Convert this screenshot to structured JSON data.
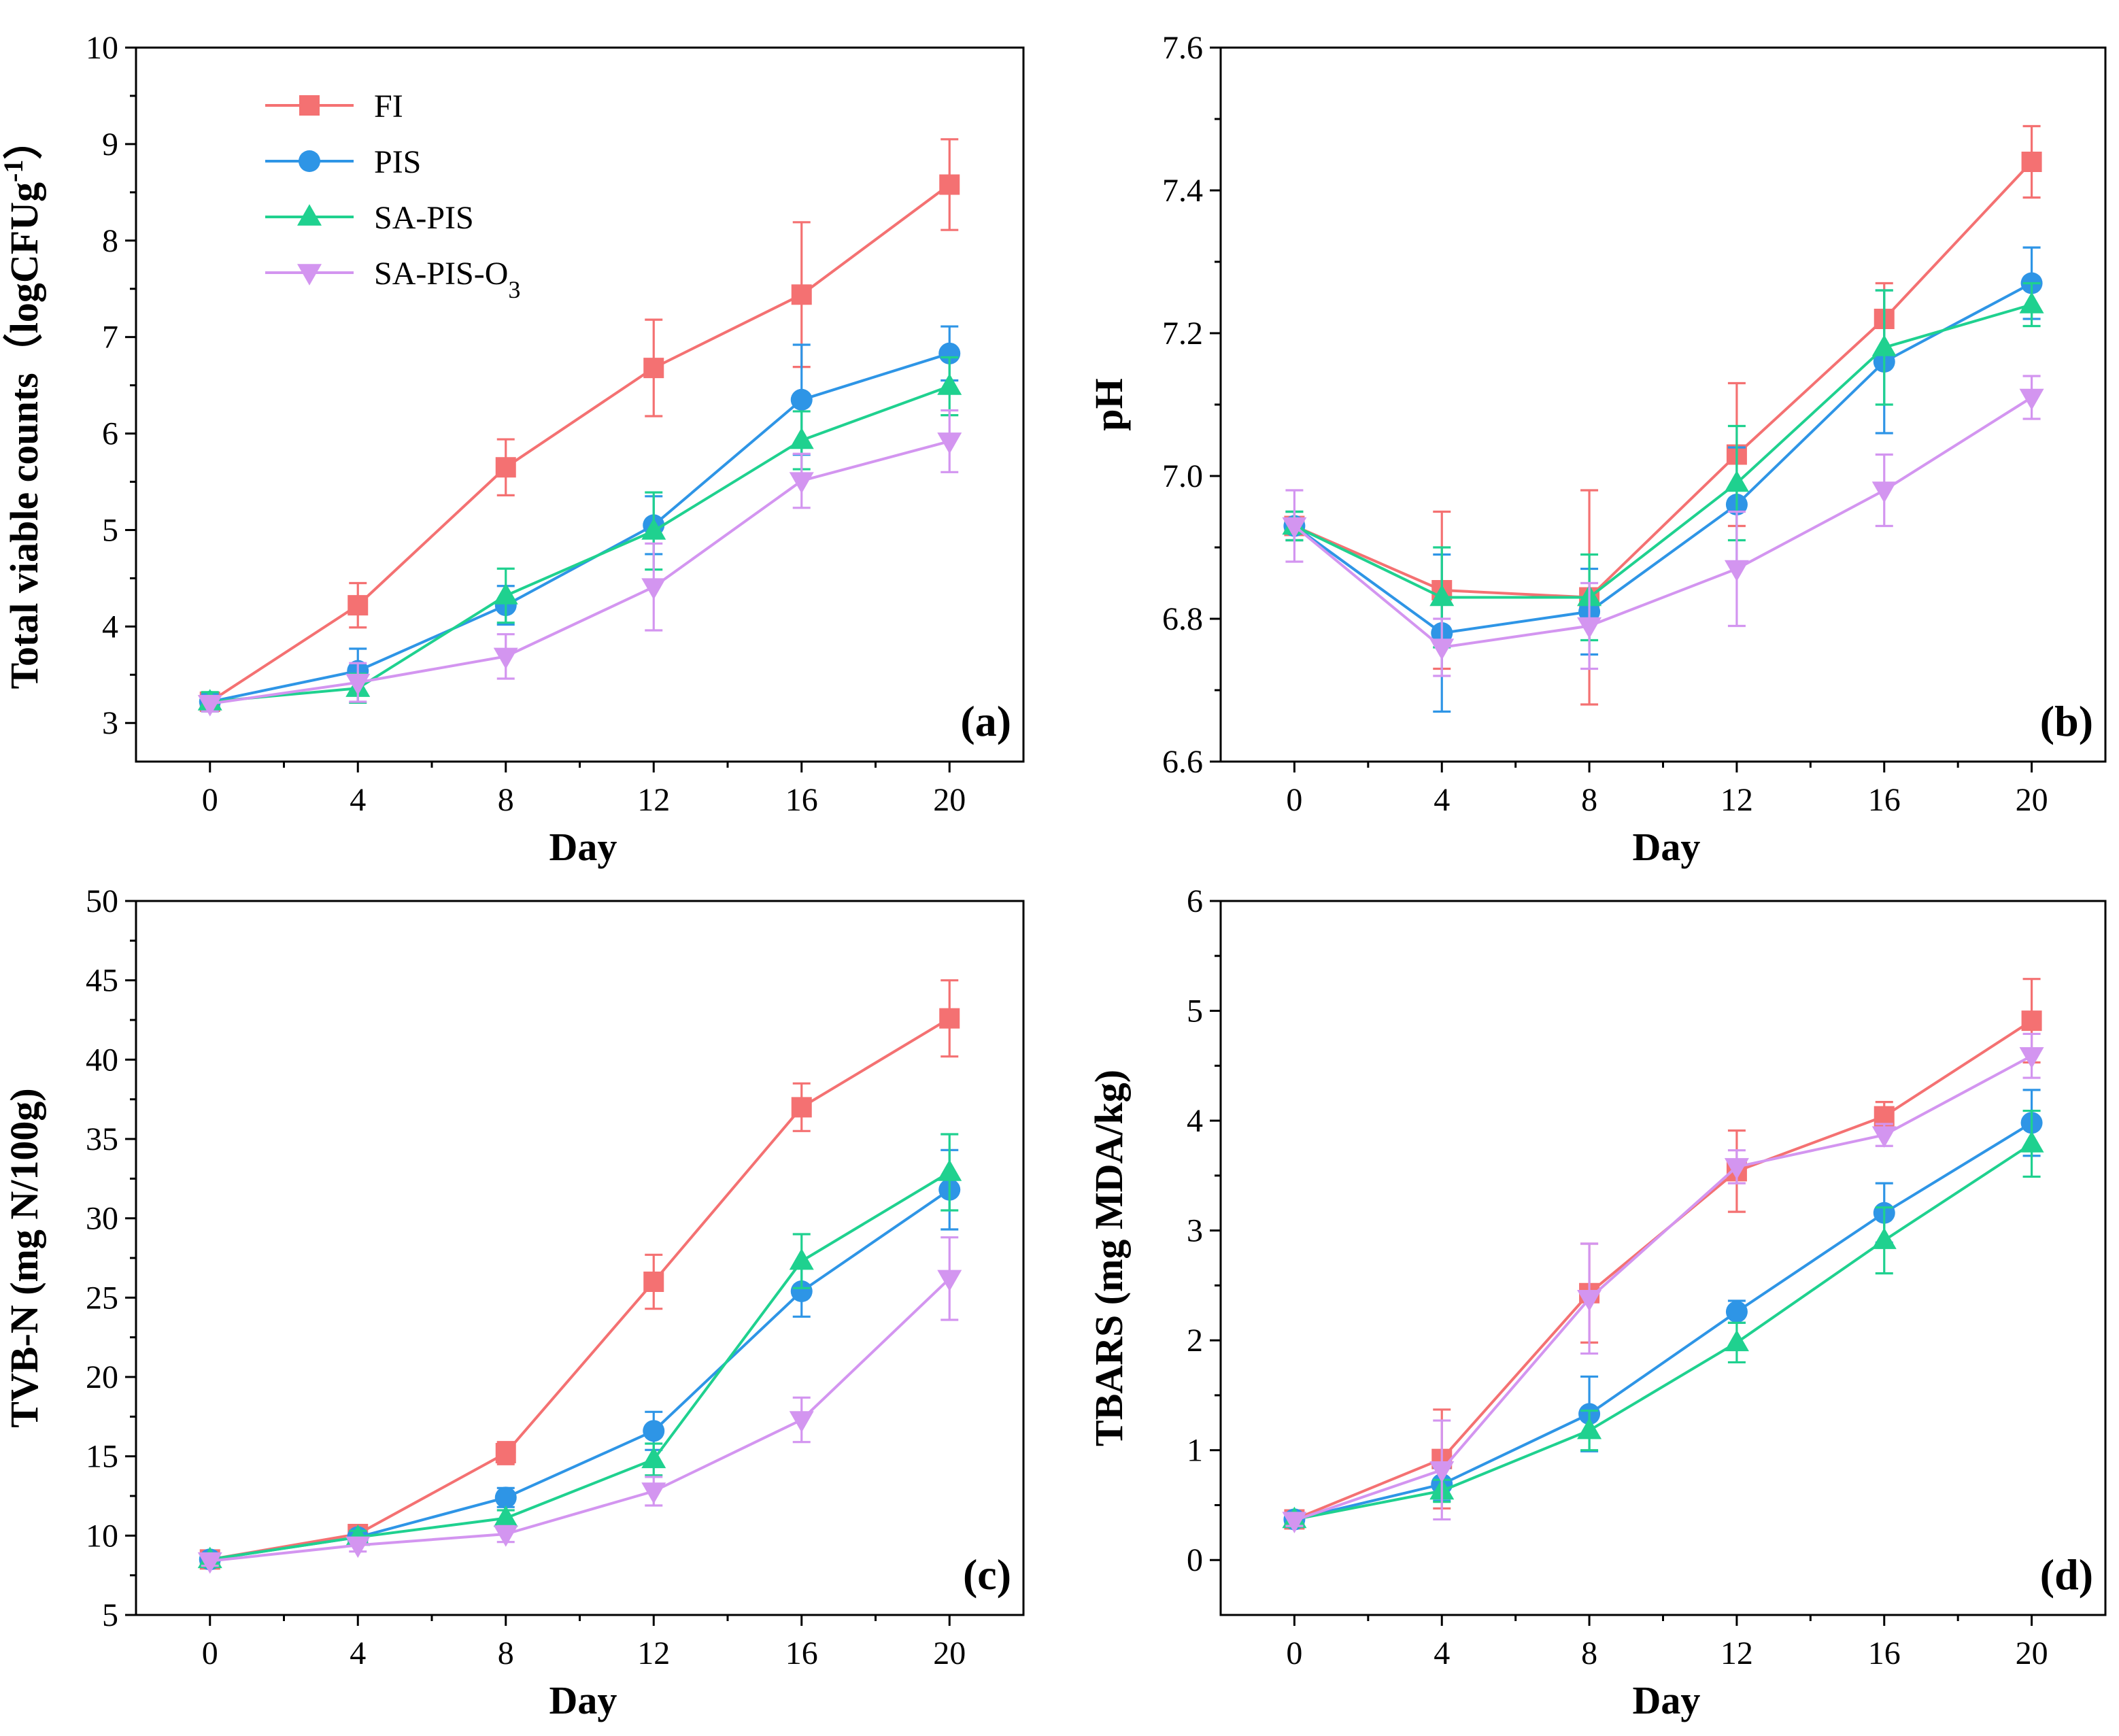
{
  "colors": {
    "FI": "#f47172",
    "PIS": "#2e95e6",
    "SA-PIS": "#1fd18f",
    "SA-PIS-O3": "#d395f0"
  },
  "legend": [
    {
      "key": "FI",
      "label": "FI",
      "marker": "square"
    },
    {
      "key": "PIS",
      "label": "PIS",
      "marker": "circle"
    },
    {
      "key": "SA-PIS",
      "label": "SA-PIS",
      "marker": "triangle-up"
    },
    {
      "key": "SA-PIS-O3",
      "label": "SA-PIS-O",
      "sub": "3",
      "marker": "triangle-down"
    }
  ],
  "chart_data": [
    {
      "type": "line",
      "panel": "(a)",
      "xlabel": "Day",
      "ylabel": "Total viable counts（logCFUg",
      "ylabel_sup": "-1",
      "ylabel_close": "）",
      "x": [
        0,
        4,
        8,
        12,
        16,
        20
      ],
      "xlim": [
        -2,
        22
      ],
      "ylim": [
        2.6,
        10
      ],
      "yticks": [
        "3",
        "4",
        "5",
        "6",
        "7",
        "8",
        "9",
        "10"
      ],
      "yticks_values": [
        3,
        4,
        5,
        6,
        7,
        8,
        9,
        10
      ],
      "xticks": [
        "0",
        "4",
        "8",
        "12",
        "16",
        "20"
      ],
      "series": [
        {
          "name": "FI",
          "values": [
            3.22,
            4.22,
            5.65,
            6.68,
            7.44,
            8.58
          ],
          "err": [
            0.08,
            0.23,
            0.29,
            0.5,
            0.75,
            0.47
          ]
        },
        {
          "name": "PIS",
          "values": [
            3.22,
            3.54,
            4.22,
            5.05,
            6.35,
            6.83
          ],
          "err": [
            0.08,
            0.23,
            0.2,
            0.3,
            0.57,
            0.28
          ]
        },
        {
          "name": "SA-PIS",
          "values": [
            3.22,
            3.36,
            4.32,
            4.99,
            5.93,
            6.49
          ],
          "err": [
            0.1,
            0.15,
            0.28,
            0.4,
            0.3,
            0.3
          ]
        },
        {
          "name": "SA-PIS-O3",
          "values": [
            3.2,
            3.42,
            3.69,
            4.41,
            5.51,
            5.92
          ],
          "err": [
            0.08,
            0.2,
            0.23,
            0.45,
            0.28,
            0.32
          ]
        }
      ],
      "show_legend": true
    },
    {
      "type": "line",
      "panel": "(b)",
      "xlabel": "Day",
      "ylabel": "pH",
      "x": [
        0,
        4,
        8,
        12,
        16,
        20
      ],
      "xlim": [
        -2,
        22
      ],
      "ylim": [
        6.6,
        7.6
      ],
      "yticks": [
        "6.6",
        "6.8",
        "7.0",
        "7.2",
        "7.4",
        "7.6"
      ],
      "yticks_values": [
        6.6,
        6.8,
        7.0,
        7.2,
        7.4,
        7.6
      ],
      "xticks": [
        "0",
        "4",
        "8",
        "12",
        "16",
        "20"
      ],
      "series": [
        {
          "name": "FI",
          "values": [
            6.93,
            6.84,
            6.83,
            7.03,
            7.22,
            7.44
          ],
          "err": [
            0.02,
            0.11,
            0.15,
            0.1,
            0.05,
            0.05
          ]
        },
        {
          "name": "PIS",
          "values": [
            6.93,
            6.78,
            6.81,
            6.96,
            7.16,
            7.27
          ],
          "err": [
            0.02,
            0.11,
            0.06,
            0.08,
            0.1,
            0.05
          ]
        },
        {
          "name": "SA-PIS",
          "values": [
            6.93,
            6.83,
            6.83,
            6.99,
            7.18,
            7.24
          ],
          "err": [
            0.02,
            0.07,
            0.06,
            0.08,
            0.08,
            0.03
          ]
        },
        {
          "name": "SA-PIS-O3",
          "values": [
            6.93,
            6.76,
            6.79,
            6.87,
            6.98,
            7.11
          ],
          "err": [
            0.05,
            0.04,
            0.06,
            0.08,
            0.05,
            0.03
          ]
        }
      ],
      "show_legend": false
    },
    {
      "type": "line",
      "panel": "(c)",
      "xlabel": "Day",
      "ylabel": "TVB-N (mg N/100g)",
      "x": [
        0,
        4,
        8,
        12,
        16,
        20
      ],
      "xlim": [
        -2,
        22
      ],
      "ylim": [
        5,
        50
      ],
      "yticks": [
        "5",
        "10",
        "15",
        "20",
        "25",
        "30",
        "35",
        "40",
        "45",
        "50"
      ],
      "yticks_values": [
        5,
        10,
        15,
        20,
        25,
        30,
        35,
        40,
        45,
        50
      ],
      "xticks": [
        "0",
        "4",
        "8",
        "12",
        "16",
        "20"
      ],
      "series": [
        {
          "name": "FI",
          "values": [
            8.5,
            10.1,
            15.2,
            26.0,
            37.0,
            42.6
          ],
          "err": [
            0.3,
            0.4,
            0.7,
            1.7,
            1.5,
            2.4
          ]
        },
        {
          "name": "PIS",
          "values": [
            8.5,
            9.9,
            12.4,
            16.6,
            25.4,
            31.8
          ],
          "err": [
            0.3,
            0.4,
            0.6,
            1.2,
            1.6,
            2.5
          ]
        },
        {
          "name": "SA-PIS",
          "values": [
            8.5,
            9.9,
            11.1,
            14.8,
            27.3,
            32.9
          ],
          "err": [
            0.3,
            0.4,
            0.5,
            1.0,
            1.7,
            2.4
          ]
        },
        {
          "name": "SA-PIS-O3",
          "values": [
            8.4,
            9.4,
            10.1,
            12.8,
            17.3,
            26.2
          ],
          "err": [
            0.3,
            0.4,
            0.5,
            0.9,
            1.4,
            2.6
          ]
        }
      ],
      "show_legend": false
    },
    {
      "type": "line",
      "panel": "(d)",
      "xlabel": "Day",
      "ylabel": "TBARS (mg MDA/kg)",
      "x": [
        0,
        4,
        8,
        12,
        16,
        20
      ],
      "xlim": [
        -2,
        22
      ],
      "ylim": [
        -0.5,
        6
      ],
      "yticks": [
        "0",
        "1",
        "2",
        "3",
        "4",
        "5",
        "6"
      ],
      "yticks_values": [
        0,
        1,
        2,
        3,
        4,
        5,
        6
      ],
      "xticks": [
        "0",
        "4",
        "8",
        "12",
        "16",
        "20"
      ],
      "series": [
        {
          "name": "FI",
          "values": [
            0.37,
            0.92,
            2.43,
            3.54,
            4.04,
            4.91
          ],
          "err": [
            0.05,
            0.45,
            0.45,
            0.37,
            0.13,
            0.38
          ]
        },
        {
          "name": "PIS",
          "values": [
            0.37,
            0.69,
            1.33,
            2.26,
            3.16,
            3.98
          ],
          "err": [
            0.05,
            0.15,
            0.34,
            0.1,
            0.27,
            0.3
          ]
        },
        {
          "name": "SA-PIS",
          "values": [
            0.37,
            0.63,
            1.18,
            1.98,
            2.91,
            3.79
          ],
          "err": [
            0.05,
            0.1,
            0.18,
            0.18,
            0.3,
            0.3
          ]
        },
        {
          "name": "SA-PIS-O3",
          "values": [
            0.36,
            0.82,
            2.38,
            3.58,
            3.87,
            4.59
          ],
          "err": [
            0.05,
            0.45,
            0.5,
            0.15,
            0.1,
            0.2
          ]
        }
      ],
      "show_legend": false
    }
  ]
}
